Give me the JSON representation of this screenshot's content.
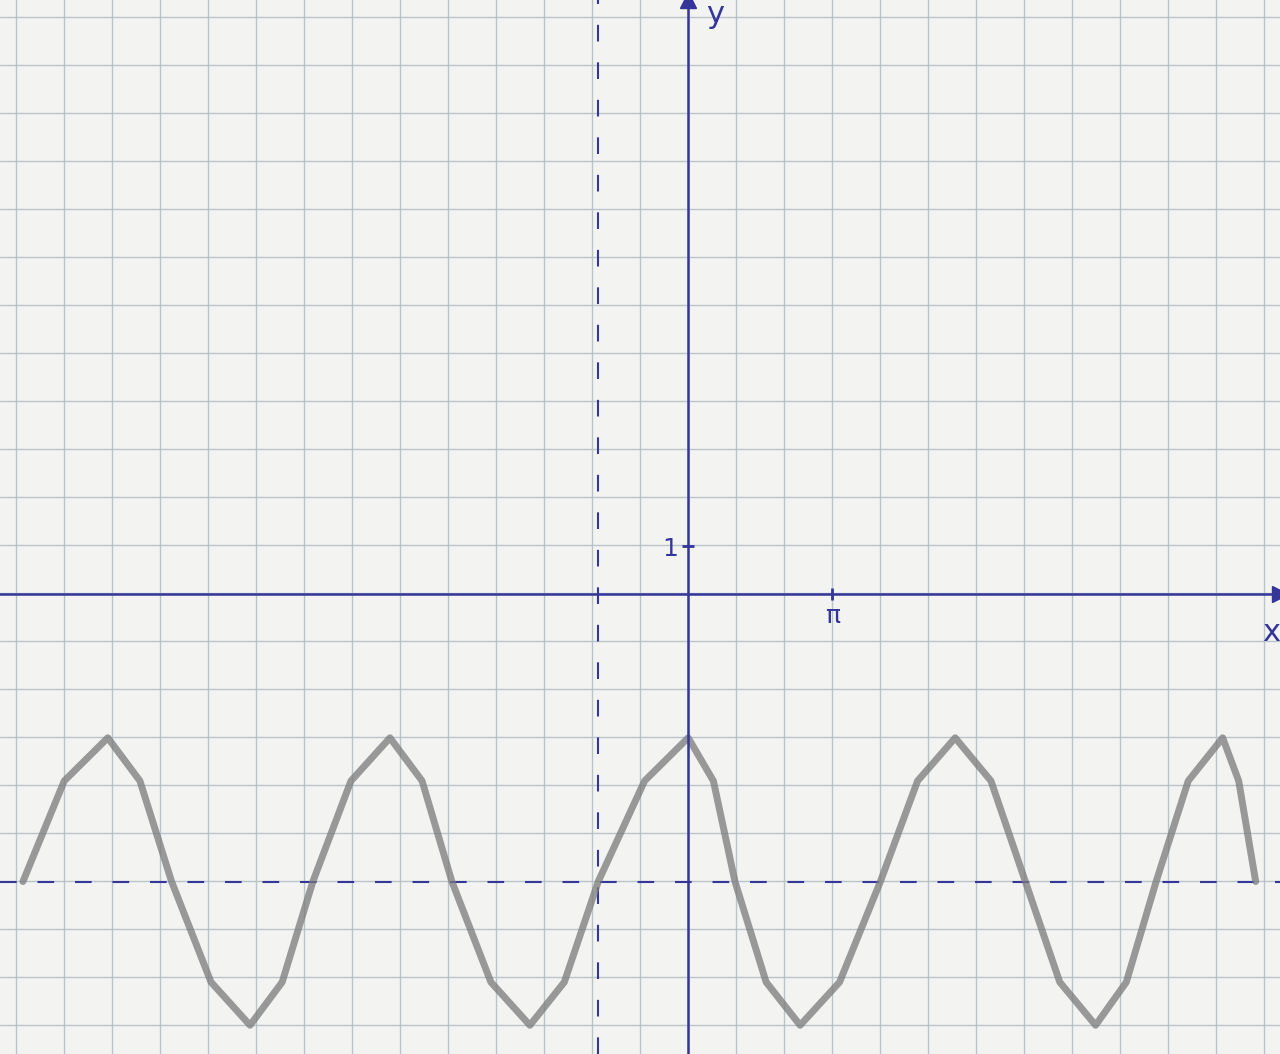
{
  "chart_data": {
    "type": "line",
    "x_label": "x",
    "y_label": "y",
    "xlim": [
      -15.0,
      12.9
    ],
    "ylim": [
      -9.6,
      12.4
    ],
    "xticks": [
      {
        "value": 3.14,
        "label": "π"
      }
    ],
    "yticks": [
      1
    ],
    "x": [
      -14.5,
      -13.6,
      -12.65,
      -11.95,
      -11.26,
      -10.4,
      -9.55,
      -8.85,
      -8.18,
      -7.35,
      -6.5,
      -5.8,
      -5.15,
      -4.3,
      -3.45,
      -2.7,
      -1.96,
      -0.95,
      0,
      0.55,
      1.02,
      1.7,
      2.44,
      3.3,
      4.19,
      5.0,
      5.82,
      6.6,
      7.35,
      8.1,
      8.88,
      9.55,
      10.2,
      10.9,
      11.65,
      12.0,
      12.37
    ],
    "values": [
      -6,
      -3.9,
      -3,
      -3.9,
      -6,
      -8.1,
      -9,
      -8.1,
      -6,
      -3.9,
      -3,
      -3.9,
      -6,
      -8.1,
      -9,
      -8.1,
      -6,
      -3.9,
      -3,
      -3.9,
      -6,
      -8.1,
      -9,
      -8.1,
      -6,
      -3.9,
      -3,
      -3.9,
      -6,
      -8.1,
      -9,
      -8.1,
      -6,
      -3.9,
      -3,
      -3.9,
      -6
    ],
    "color": "#7a7a7a",
    "line_style": "solid",
    "dashed_lines": {
      "x": -1.96,
      "y": -6
    }
  }
}
